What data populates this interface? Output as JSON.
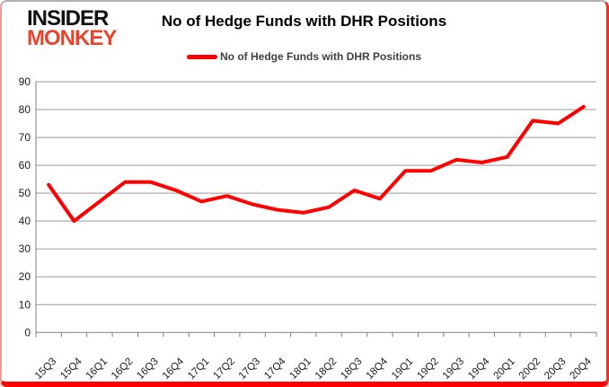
{
  "logo": {
    "line1": "INSIDER",
    "line2": "MONKEY"
  },
  "header": {
    "title": "No of Hedge Funds with DHR Positions"
  },
  "legend": {
    "label": "No of Hedge Funds with DHR Positions"
  },
  "colors": {
    "series_line": "#ff0000",
    "gridline": "#999999",
    "axis": "#808080",
    "tick_label": "#1a1a1a",
    "title_text": "#000000",
    "legend_text": "#404040",
    "logo_black": "#111111",
    "logo_red": "#e8432d",
    "frame_bottom_red": "#ff0000"
  },
  "chart_data": {
    "type": "line",
    "title": "No of Hedge Funds with DHR Positions",
    "categories": [
      "15Q3",
      "15Q4",
      "16Q1",
      "16Q2",
      "16Q3",
      "16Q4",
      "17Q1",
      "17Q2",
      "17Q3",
      "17Q4",
      "18Q1",
      "18Q2",
      "18Q3",
      "18Q4",
      "19Q1",
      "19Q2",
      "19Q3",
      "19Q4",
      "20Q1",
      "20Q2",
      "20Q3",
      "20Q4"
    ],
    "series": [
      {
        "name": "No of Hedge Funds with DHR Positions",
        "color": "#ff0000",
        "values": [
          53,
          40,
          47,
          54,
          54,
          51,
          47,
          49,
          46,
          44,
          43,
          45,
          51,
          48,
          58,
          58,
          62,
          61,
          63,
          76,
          75,
          81
        ]
      }
    ],
    "xlabel": "",
    "ylabel": "",
    "ylim": [
      0,
      90
    ],
    "ytick_step": 10,
    "grid": true,
    "legend_position": "top-center"
  }
}
